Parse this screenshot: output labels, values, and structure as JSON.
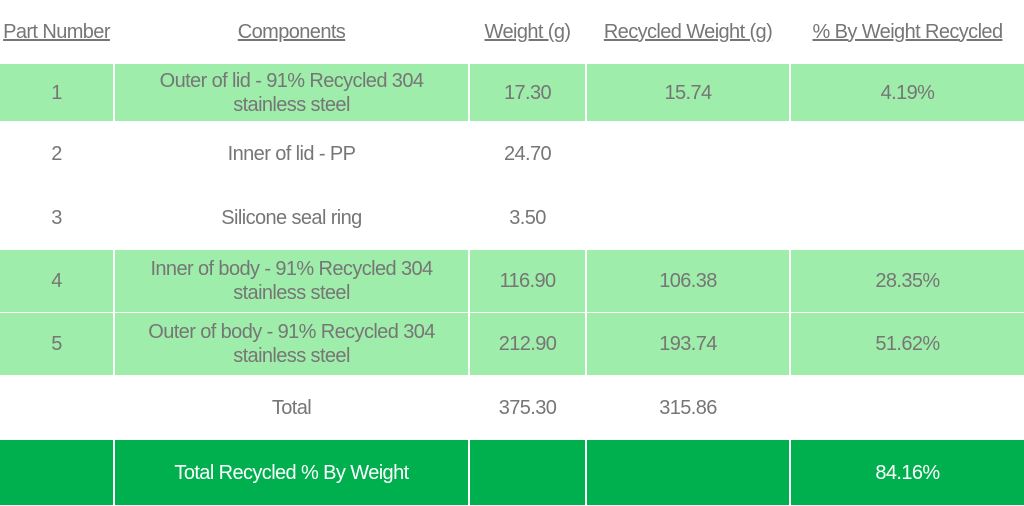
{
  "table": {
    "headers": [
      "Part Number",
      "Components",
      "Weight (g)",
      "Recycled Weight (g)",
      "% By Weight Recycled"
    ],
    "rows": [
      [
        "1",
        "Outer of lid - 91% Recycled 304 stainless steel",
        "17.30",
        "15.74",
        "4.19%"
      ],
      [
        "2",
        "Inner of lid - PP",
        "24.70",
        null,
        null
      ],
      [
        "3",
        "Silicone seal ring",
        "3.50",
        null,
        null
      ],
      [
        "4",
        "Inner of body - 91% Recycled 304 stainless steel",
        "116.90",
        "106.38",
        "28.35%"
      ],
      [
        "5",
        "Outer of body - 91% Recycled 304 stainless steel",
        "212.90",
        "193.74",
        "51.62%"
      ],
      [
        null,
        "Total",
        "375.30",
        "315.86",
        null
      ],
      [
        null,
        "Total Recycled % By Weight",
        null,
        null,
        "84.16%"
      ]
    ]
  }
}
